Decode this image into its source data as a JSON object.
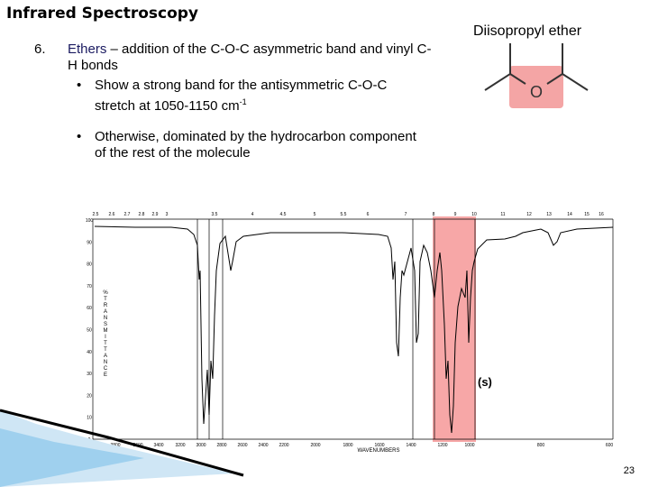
{
  "header": {
    "title": "Infrared Spectroscopy"
  },
  "list": {
    "number": "6.",
    "term": "Ethers",
    "text": " – addition of the C-O-C asymmetric band and vinyl C-H bonds",
    "bullets": [
      {
        "text": "Show a strong band for the antisymmetric C-O-C stretch at 1050-1150 cm",
        "sup": "-1"
      },
      {
        "text": "Otherwise, dominated by the hydrocarbon component of the rest of the molecule"
      }
    ]
  },
  "molecule": {
    "name": "Diisopropyl ether",
    "atom": "O"
  },
  "spectrum": {
    "top_ticks": [
      "2.5",
      "2.6",
      "2.7",
      "2.8",
      "2.9",
      "3",
      "3.5",
      "4",
      "4.5",
      "5",
      "5.5",
      "6",
      "7",
      "8",
      "9",
      "10",
      "11",
      "12",
      "13",
      "14",
      "15",
      "16"
    ],
    "bottom_ticks": [
      "4000",
      "3800",
      "3600",
      "3400",
      "3200",
      "3000",
      "2800",
      "2600",
      "2400",
      "2200",
      "2000",
      "1800",
      "1600",
      "1400",
      "1200",
      "1000",
      "800",
      "600"
    ],
    "y_ticks": [
      "100",
      "90",
      "80",
      "70",
      "60",
      "50",
      "40",
      "30",
      "20",
      "10",
      "0"
    ],
    "y_label": "%TRANSMITTANCE",
    "x_label": "WAVENUMBERS",
    "annotation": "(s)"
  },
  "page_number": "23"
}
